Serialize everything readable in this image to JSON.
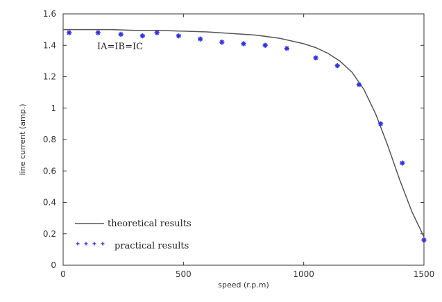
{
  "chart_data": {
    "type": "line",
    "xlabel": "speed (r.p.m)",
    "ylabel": "line current (amp.)",
    "xlim": [
      0,
      1500
    ],
    "ylim": [
      0,
      1.6
    ],
    "xticks": [
      "0",
      "500",
      "1000",
      "1500"
    ],
    "yticks": [
      "0",
      "0.2",
      "0.4",
      "0.6",
      "0.8",
      "1",
      "1.2",
      "1.4",
      "1.6"
    ],
    "annotation": "IA=IB=IC",
    "series": [
      {
        "name": "theoretical results",
        "style": "line",
        "color": "#555555",
        "x": [
          0,
          100,
          200,
          300,
          400,
          500,
          600,
          700,
          800,
          900,
          1000,
          1050,
          1100,
          1150,
          1200,
          1250,
          1300,
          1350,
          1400,
          1450,
          1500
        ],
        "y": [
          1.5,
          1.5,
          1.5,
          1.495,
          1.495,
          1.49,
          1.485,
          1.475,
          1.465,
          1.445,
          1.41,
          1.385,
          1.35,
          1.3,
          1.23,
          1.12,
          0.96,
          0.76,
          0.54,
          0.34,
          0.18
        ]
      },
      {
        "name": "practical results",
        "style": "points",
        "color": "#3333dd",
        "x": [
          25,
          145,
          240,
          330,
          390,
          480,
          570,
          660,
          750,
          840,
          930,
          1050,
          1140,
          1230,
          1320,
          1410,
          1500
        ],
        "y": [
          1.48,
          1.48,
          1.47,
          1.46,
          1.48,
          1.46,
          1.44,
          1.42,
          1.41,
          1.4,
          1.38,
          1.32,
          1.27,
          1.15,
          0.9,
          0.65,
          0.16
        ]
      }
    ],
    "legend": {
      "placement": "bottom-left",
      "items": [
        "theoretical results",
        "practical results"
      ]
    },
    "grid": false
  }
}
